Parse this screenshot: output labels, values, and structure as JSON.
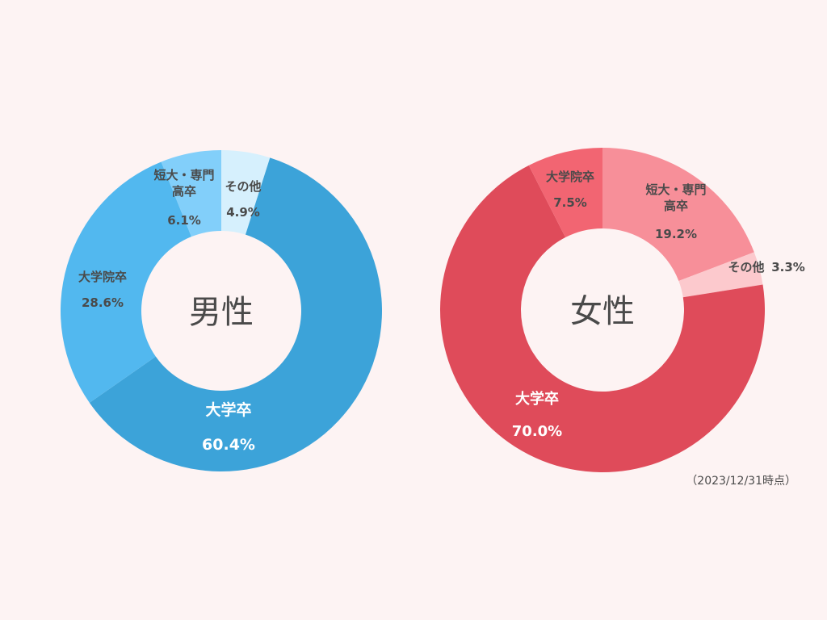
{
  "note": "（2023/12/31時点）",
  "chart_data": [
    {
      "type": "pie",
      "center_label": "男性",
      "slices": [
        {
          "label": [
            "その他"
          ],
          "value": 4.9,
          "value_text": "4.9%",
          "color": "#d6f0fd"
        },
        {
          "label": [
            "大学卒"
          ],
          "value": 60.4,
          "value_text": "60.4%",
          "color": "#3ca3d9"
        },
        {
          "label": [
            "大学院卒"
          ],
          "value": 28.6,
          "value_text": "28.6%",
          "color": "#52b8ef"
        },
        {
          "label": [
            "短大・専門",
            "高卒"
          ],
          "value": 6.1,
          "value_text": "6.1%",
          "color": "#82cffa"
        }
      ]
    },
    {
      "type": "pie",
      "center_label": "女性",
      "slices": [
        {
          "label": [
            "短大・専門",
            "高卒"
          ],
          "value": 19.2,
          "value_text": "19.2%",
          "color": "#f78f99"
        },
        {
          "label": [
            "その他"
          ],
          "value": 3.3,
          "value_text": "3.3%",
          "color": "#fcc9cd"
        },
        {
          "label": [
            "大学卒"
          ],
          "value": 70.0,
          "value_text": "70.0%",
          "color": "#df4b5a"
        },
        {
          "label": [
            "大学院卒"
          ],
          "value": 7.5,
          "value_text": "7.5%",
          "color": "#f26572"
        }
      ]
    }
  ]
}
